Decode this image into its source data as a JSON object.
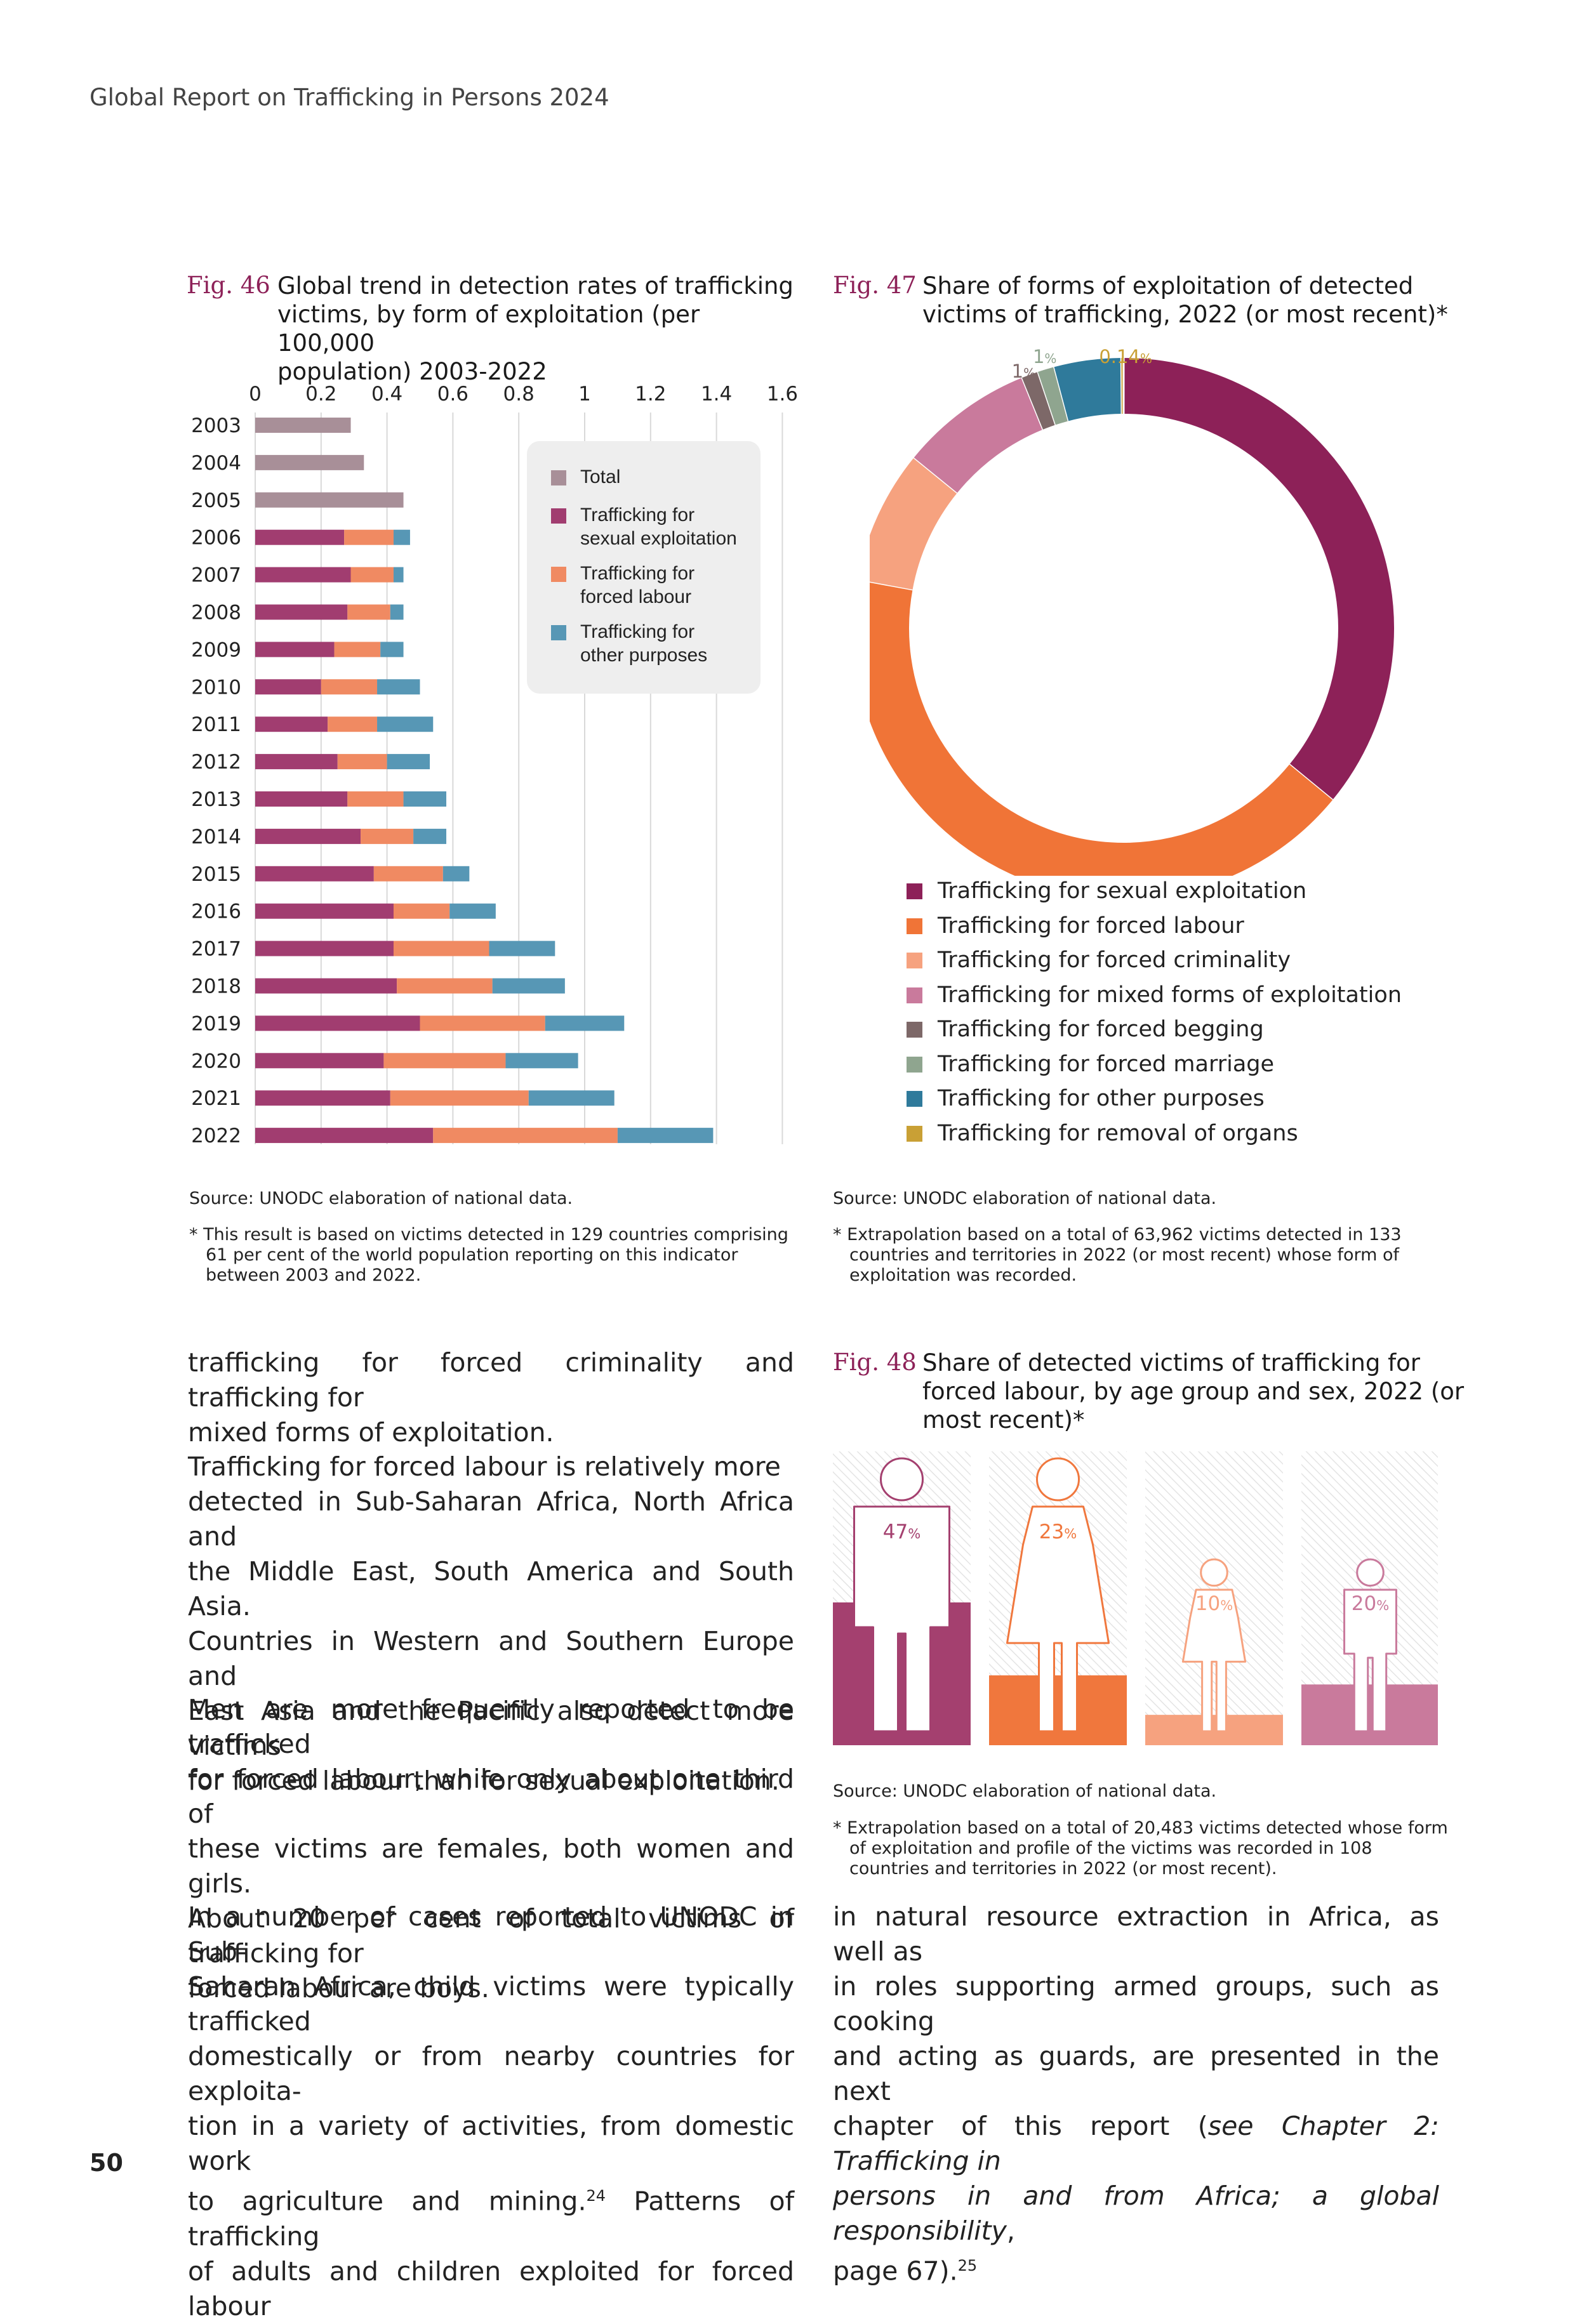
{
  "header": {
    "running_title": "Global Report on Trafficking in Persons 2024"
  },
  "fig46": {
    "number": "Fig. 46",
    "title_lines": [
      "Global trend in detection rates of trafficking",
      "victims, by form of exploitation (per 100,000",
      "population) 2003-2022"
    ],
    "source": "Source: UNODC elaboration of national data.",
    "note_lines": [
      "* This result is based on victims detected in 129 countries comprising",
      "61 per cent of the world population reporting on this indicator",
      "between 2003 and 2022."
    ],
    "legend": [
      {
        "label_lines": [
          "Total"
        ],
        "color": "#a88f98"
      },
      {
        "label_lines": [
          "Trafficking for",
          "sexual exploitation"
        ],
        "color": "#a13d70"
      },
      {
        "label_lines": [
          "Trafficking for",
          "forced labour"
        ],
        "color": "#f08a62"
      },
      {
        "label_lines": [
          "Trafficking for",
          "other purposes"
        ],
        "color": "#5797b5"
      }
    ]
  },
  "chart_data": [
    {
      "type": "bar",
      "orientation": "horizontal",
      "stacked": true,
      "categories": [
        "2003",
        "2004",
        "2005",
        "2006",
        "2007",
        "2008",
        "2009",
        "2010",
        "2011",
        "2012",
        "2013",
        "2014",
        "2015",
        "2016",
        "2017",
        "2018",
        "2019",
        "2020",
        "2021",
        "2022"
      ],
      "xticks": [
        "0",
        "0.2",
        "0.4",
        "0.6",
        "0.8",
        "1",
        "1.2",
        "1.4",
        "1.6"
      ],
      "xlim": [
        0,
        1.6
      ],
      "grid": true,
      "legend_position": "right",
      "series": [
        {
          "name": "Total",
          "color": "#a88f98",
          "values": [
            0.29,
            0.33,
            0.45,
            0,
            0,
            0,
            0,
            0,
            0,
            0,
            0,
            0,
            0,
            0,
            0,
            0,
            0,
            0,
            0,
            0
          ]
        },
        {
          "name": "Trafficking for sexual exploitation",
          "color": "#a13d70",
          "values": [
            0,
            0,
            0,
            0.27,
            0.29,
            0.28,
            0.24,
            0.2,
            0.22,
            0.25,
            0.28,
            0.32,
            0.36,
            0.42,
            0.42,
            0.43,
            0.5,
            0.39,
            0.41,
            0.54
          ]
        },
        {
          "name": "Trafficking for forced labour",
          "color": "#f08a62",
          "values": [
            0,
            0,
            0,
            0.15,
            0.13,
            0.13,
            0.14,
            0.17,
            0.15,
            0.15,
            0.17,
            0.16,
            0.21,
            0.17,
            0.29,
            0.29,
            0.38,
            0.37,
            0.42,
            0.56
          ]
        },
        {
          "name": "Trafficking for other purposes",
          "color": "#5797b5",
          "values": [
            0,
            0,
            0,
            0.05,
            0.03,
            0.04,
            0.07,
            0.13,
            0.17,
            0.13,
            0.13,
            0.1,
            0.08,
            0.14,
            0.2,
            0.22,
            0.24,
            0.22,
            0.26,
            0.29
          ]
        }
      ]
    },
    {
      "type": "pie",
      "style": "donut",
      "labels": [
        "Trafficking for sexual exploitation",
        "Trafficking for forced labour",
        "Trafficking for forced criminality",
        "Trafficking for mixed forms of exploitation",
        "Trafficking for forced begging",
        "Trafficking for forced marriage",
        "Trafficking for other purposes",
        "Trafficking for removal of organs"
      ],
      "values": [
        36,
        42,
        8,
        8,
        1,
        1,
        4,
        0.14
      ],
      "value_labels": [
        "36",
        "42",
        "8",
        "8",
        "1",
        "1",
        "4",
        "0.14"
      ],
      "colors": [
        "#8d2158",
        "#f07437",
        "#f6a27f",
        "#c97a9c",
        "#7d6868",
        "#8fa58f",
        "#2f7a9b",
        "#c9a035"
      ],
      "unit": "%",
      "legend_position": "bottom"
    },
    {
      "type": "bar",
      "categories": [
        "Men",
        "Women",
        "Girls",
        "Boys"
      ],
      "values": [
        47,
        23,
        10,
        20
      ],
      "unit": "%",
      "colors": [
        "#a4406f",
        "#f0773d",
        "#f6a27f",
        "#c97a9c"
      ]
    }
  ],
  "fig47": {
    "number": "Fig. 47",
    "title_lines": [
      "Share of forms of exploitation of detected",
      "victims of trafficking, 2022 (or most recent)*"
    ],
    "source": "Source: UNODC elaboration of national data.",
    "note_lines": [
      "* Extrapolation based on a total of 63,962 victims detected in 133",
      "countries and territories in 2022 (or most recent) whose form of",
      "exploitation was recorded."
    ]
  },
  "fig48": {
    "number": "Fig. 48",
    "title_lines": [
      "Share of detected victims of trafficking for",
      "forced labour, by age group and sex, 2022 (or",
      "most recent)*"
    ],
    "source": "Source: UNODC elaboration of national data.",
    "note_lines": [
      "* Extrapolation based on a total of 20,483 victims detected whose form",
      "of exploitation and profile of the victims was recorded in 108",
      "countries and territories in 2022 (or most recent)."
    ],
    "labels": [
      "47",
      "23",
      "10",
      "20"
    ]
  },
  "body": {
    "left_p1": [
      "trafficking for forced criminality and trafficking for",
      "mixed forms of exploitation."
    ],
    "left_p2": [
      "Trafficking for forced labour is relatively more",
      "detected in Sub-Saharan Africa, North Africa and",
      "the Middle East, South America and South Asia.",
      "Countries in Western and Southern Europe and",
      "East Asia and the Pacific also detect more victims",
      "for forced labour than for sexual exploitation."
    ],
    "left_p3": [
      "Men are more frequently reported to be trafficked",
      "for forced labour, while only about one third of",
      "these victims are females, both women and girls.",
      "About 20 per cent of total victims of trafficking for",
      "forced labour are boys."
    ],
    "left_p4": [
      "In a number of cases reported to UNODC in Sub-",
      "Saharan Africa, child victims were typically trafficked",
      "domestically or from nearby countries for exploita-",
      "tion in a variety of activities, from domestic work",
      "to agriculture and mining.",
      "24",
      " Patterns of trafficking",
      "of adults and children exploited for forced labour"
    ],
    "right_p1_lines": [
      "in natural resource extraction in Africa, as well as",
      "in roles supporting armed groups, such as cooking",
      "and acting as guards, are presented in the next",
      "chapter of this report (",
      "see Chapter 2: Trafficking in",
      "persons in and from Africa; a global responsibility",
      ",",
      "page 67).",
      "25"
    ]
  },
  "footer": {
    "page_number": "50"
  }
}
